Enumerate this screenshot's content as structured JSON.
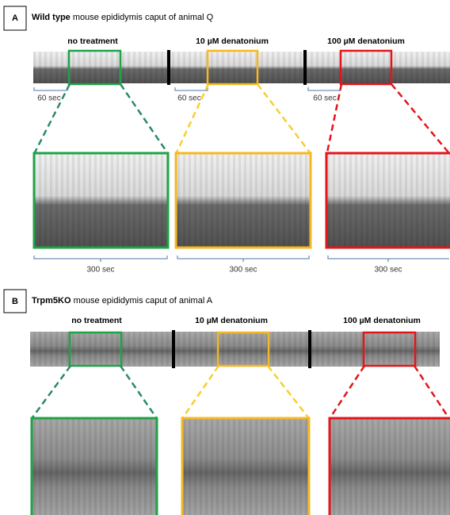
{
  "panels": [
    {
      "label": "A",
      "title_bold": "Wild type",
      "title_rest": " mouse epididymis caput of animal Q",
      "conditions": [
        "no treatment",
        "10 µM denatonium",
        "100 µM denatonium"
      ],
      "short_scale": [
        "60 sec",
        "60 sec",
        "60 sec"
      ],
      "long_scale": [
        "300 sec",
        "300 sec",
        "300 sec"
      ]
    },
    {
      "label": "B",
      "title_bold": "Trpm5KO",
      "title_rest": " mouse epididymis caput of animal A",
      "conditions": [
        "no treatment",
        "10 µM denatonium",
        "100 µM denatonium"
      ]
    }
  ]
}
